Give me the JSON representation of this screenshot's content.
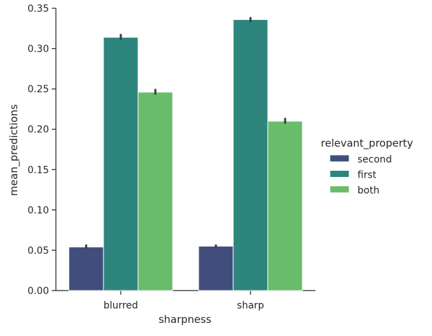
{
  "chart_data": {
    "type": "bar",
    "xlabel": "sharpness",
    "ylabel": "mean_predictions",
    "categories": [
      "blurred",
      "sharp"
    ],
    "ylim": [
      0,
      0.35
    ],
    "yticks": [
      "0.00",
      "0.05",
      "0.10",
      "0.15",
      "0.20",
      "0.25",
      "0.30",
      "0.35"
    ],
    "legend": {
      "title": "relevant_property",
      "placement": "right"
    },
    "series": [
      {
        "name": "second",
        "color": "#414e7d",
        "values": [
          0.054,
          0.055
        ],
        "ci": [
          [
            0.053,
            0.056
          ],
          [
            0.054,
            0.056
          ]
        ]
      },
      {
        "name": "first",
        "color": "#2e857d",
        "values": [
          0.314,
          0.336
        ],
        "ci": [
          [
            0.312,
            0.317
          ],
          [
            0.334,
            0.338
          ]
        ]
      },
      {
        "name": "both",
        "color": "#69bc6a",
        "values": [
          0.246,
          0.21
        ],
        "ci": [
          [
            0.244,
            0.249
          ],
          [
            0.208,
            0.213
          ]
        ]
      }
    ],
    "grid": false
  }
}
